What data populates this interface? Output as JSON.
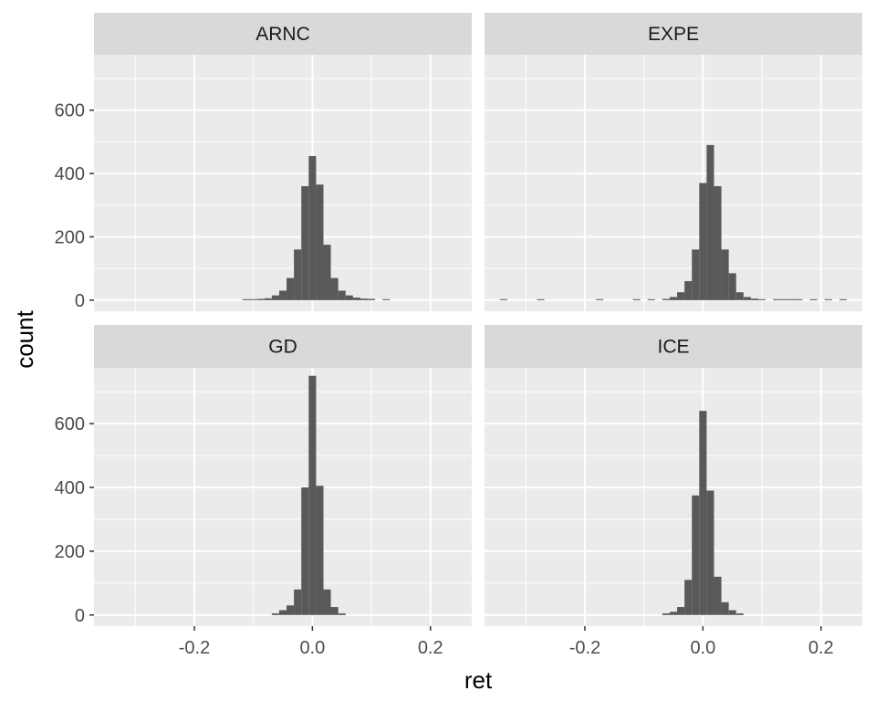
{
  "chart_data": {
    "type": "histogram",
    "layout": "facet_wrap 2x2",
    "xlabel": "ret",
    "ylabel": "count",
    "xlim": [
      -0.37,
      0.27
    ],
    "ylim": [
      -35,
      775
    ],
    "x_ticks": [
      -0.2,
      0.0,
      0.2
    ],
    "x_tick_labels": [
      "-0.2",
      "0.0",
      "0.2"
    ],
    "x_minor_ticks": [
      -0.3,
      -0.1,
      0.1
    ],
    "y_ticks": [
      0,
      200,
      400,
      600
    ],
    "y_tick_labels": [
      "0",
      "200",
      "400",
      "600"
    ],
    "y_minor_ticks": [
      100,
      300,
      500,
      700
    ],
    "bin_width": 0.0125,
    "grid": true,
    "colors": {
      "panel_background": "#ebebeb",
      "strip_background": "#d9d9d9",
      "grid_line": "#ffffff",
      "bar_fill": "#595959"
    },
    "panels": [
      {
        "name": "ARNC",
        "bins": [
          {
            "x": -0.1125,
            "count": 3
          },
          {
            "x": -0.1,
            "count": 3
          },
          {
            "x": -0.0875,
            "count": 4
          },
          {
            "x": -0.075,
            "count": 6
          },
          {
            "x": -0.0625,
            "count": 15
          },
          {
            "x": -0.05,
            "count": 30
          },
          {
            "x": -0.0375,
            "count": 70
          },
          {
            "x": -0.025,
            "count": 160
          },
          {
            "x": -0.0125,
            "count": 360
          },
          {
            "x": 0.0,
            "count": 455
          },
          {
            "x": 0.0125,
            "count": 365
          },
          {
            "x": 0.025,
            "count": 175
          },
          {
            "x": 0.0375,
            "count": 70
          },
          {
            "x": 0.05,
            "count": 30
          },
          {
            "x": 0.0625,
            "count": 15
          },
          {
            "x": 0.075,
            "count": 8
          },
          {
            "x": 0.0875,
            "count": 5
          },
          {
            "x": 0.1,
            "count": 4
          },
          {
            "x": 0.125,
            "count": 3
          }
        ]
      },
      {
        "name": "EXPE",
        "bins": [
          {
            "x": -0.3375,
            "count": 3
          },
          {
            "x": -0.275,
            "count": 3
          },
          {
            "x": -0.175,
            "count": 3
          },
          {
            "x": -0.1125,
            "count": 3
          },
          {
            "x": -0.0875,
            "count": 3
          },
          {
            "x": -0.0625,
            "count": 4
          },
          {
            "x": -0.05,
            "count": 10
          },
          {
            "x": -0.0375,
            "count": 25
          },
          {
            "x": -0.025,
            "count": 60
          },
          {
            "x": -0.0125,
            "count": 160
          },
          {
            "x": 0.0,
            "count": 370
          },
          {
            "x": 0.0125,
            "count": 490
          },
          {
            "x": 0.025,
            "count": 360
          },
          {
            "x": 0.0375,
            "count": 160
          },
          {
            "x": 0.05,
            "count": 85
          },
          {
            "x": 0.0625,
            "count": 25
          },
          {
            "x": 0.075,
            "count": 10
          },
          {
            "x": 0.0875,
            "count": 5
          },
          {
            "x": 0.1,
            "count": 3
          },
          {
            "x": 0.125,
            "count": 3
          },
          {
            "x": 0.1375,
            "count": 3
          },
          {
            "x": 0.15,
            "count": 3
          },
          {
            "x": 0.1625,
            "count": 3
          },
          {
            "x": 0.1875,
            "count": 3
          },
          {
            "x": 0.2125,
            "count": 3
          },
          {
            "x": 0.2375,
            "count": 3
          }
        ]
      },
      {
        "name": "GD",
        "bins": [
          {
            "x": -0.0625,
            "count": 5
          },
          {
            "x": -0.05,
            "count": 15
          },
          {
            "x": -0.0375,
            "count": 30
          },
          {
            "x": -0.025,
            "count": 80
          },
          {
            "x": -0.0125,
            "count": 400
          },
          {
            "x": 0.0,
            "count": 750
          },
          {
            "x": 0.0125,
            "count": 405
          },
          {
            "x": 0.025,
            "count": 80
          },
          {
            "x": 0.0375,
            "count": 25
          },
          {
            "x": 0.05,
            "count": 5
          }
        ]
      },
      {
        "name": "ICE",
        "bins": [
          {
            "x": -0.0625,
            "count": 5
          },
          {
            "x": -0.05,
            "count": 10
          },
          {
            "x": -0.0375,
            "count": 25
          },
          {
            "x": -0.025,
            "count": 110
          },
          {
            "x": -0.0125,
            "count": 375
          },
          {
            "x": 0.0,
            "count": 640
          },
          {
            "x": 0.0125,
            "count": 390
          },
          {
            "x": 0.025,
            "count": 120
          },
          {
            "x": 0.0375,
            "count": 40
          },
          {
            "x": 0.05,
            "count": 15
          },
          {
            "x": 0.0625,
            "count": 5
          }
        ]
      }
    ]
  }
}
